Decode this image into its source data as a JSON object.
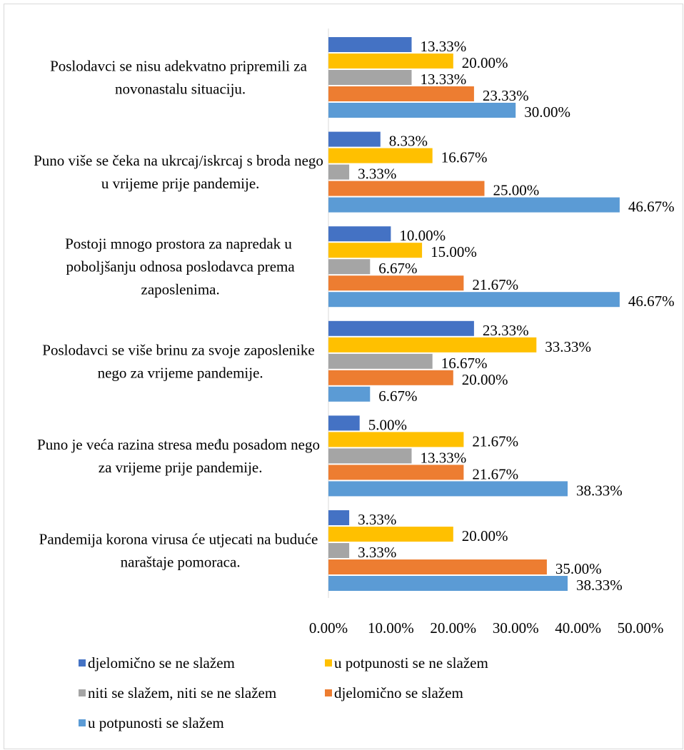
{
  "chart_data": {
    "type": "bar",
    "orientation": "horizontal",
    "categories": [
      "Poslodavci se nisu adekvatno pripremili za novonastalu situaciju.",
      "Puno više se čeka na ukrcaj/iskrcaj s broda nego u vrijeme prije pandemije.",
      "Postoji mnogo prostora za napredak u poboljšanju odnosa poslodavca prema zaposlenima.",
      "Poslodavci se više brinu za svoje zaposlenike nego za vrijeme pandemije.",
      "Puno je veća razina stresa među posadom nego za vrijeme prije pandemije.",
      "Pandemija korona virusa će utjecati na buduće naraštaje pomoraca."
    ],
    "series": [
      {
        "name": "djelomično se ne slažem",
        "color": "#4472c4",
        "values": [
          13.33,
          8.33,
          10,
          23.33,
          5,
          3.33
        ],
        "value_labels": [
          "13.33%",
          "8.33%",
          "10.00%",
          "23.33%",
          "5.00%",
          "3.33%"
        ]
      },
      {
        "name": "u potpunosti se ne slažem",
        "color": "#ffc000",
        "values": [
          20,
          16.67,
          15,
          33.33,
          21.67,
          20
        ],
        "value_labels": [
          "20.00%",
          "16.67%",
          "15.00%",
          "33.33%",
          "21.67%",
          "20.00%"
        ]
      },
      {
        "name": "niti se slažem, niti se ne slažem",
        "color": "#a5a5a5",
        "values": [
          13.33,
          3.33,
          6.67,
          16.67,
          13.33,
          3.33
        ],
        "value_labels": [
          "13.33%",
          "3.33%",
          "6.67%",
          "16.67%",
          "13.33%",
          "3.33%"
        ]
      },
      {
        "name": "djelomično se slažem",
        "color": "#ed7d31",
        "values": [
          23.33,
          25,
          21.67,
          20,
          21.67,
          35
        ],
        "value_labels": [
          "23.33%",
          "25.00%",
          "21.67%",
          "20.00%",
          "21.67%",
          "35.00%"
        ]
      },
      {
        "name": "u potpunosti se slažem",
        "color": "#5b9bd5",
        "values": [
          30,
          46.67,
          46.67,
          6.67,
          38.33,
          38.33
        ],
        "value_labels": [
          "30.00%",
          "46.67%",
          "46.67%",
          "6.67%",
          "38.33%",
          "38.33%"
        ]
      }
    ],
    "xlim": [
      0,
      50
    ],
    "xticks": [
      {
        "value": 0,
        "label": "0.00%"
      },
      {
        "value": 10,
        "label": "10.00%"
      },
      {
        "value": 20,
        "label": "20.00%"
      },
      {
        "value": 30,
        "label": "30.00%"
      },
      {
        "value": 40,
        "label": "40.00%"
      },
      {
        "value": 50,
        "label": "50.00%"
      }
    ],
    "grid": false,
    "legend": "bottom"
  }
}
